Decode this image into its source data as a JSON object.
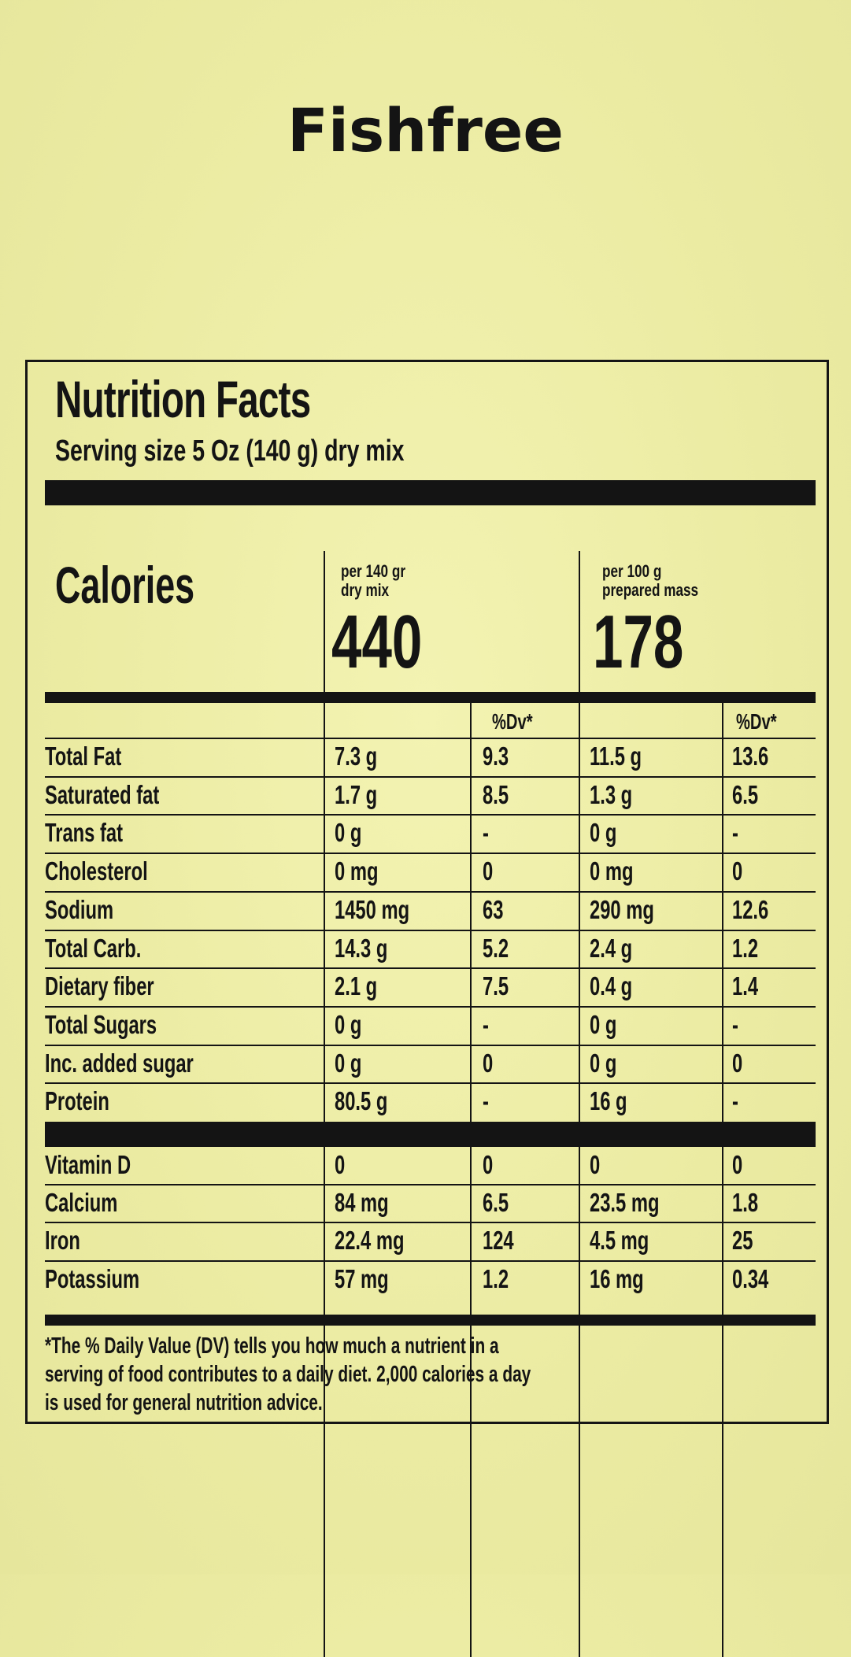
{
  "brand": "Fishfree",
  "label": {
    "title": "Nutrition Facts",
    "serving_size": "Serving size 5 Oz (140 g) dry mix",
    "calories": {
      "label": "Calories",
      "col1_caption_line1": "per 140 gr",
      "col1_caption_line2": "dry mix",
      "col1_value": "440",
      "col2_caption_line1": "per 100 g",
      "col2_caption_line2": "prepared mass",
      "col2_value": "178"
    },
    "dv_header": "%Dv*",
    "nutrients": [
      {
        "name": "Total Fat",
        "v1": "7.3 g",
        "dv1": "9.3",
        "v2": "11.5 g",
        "dv2": "13.6"
      },
      {
        "name": "Saturated fat",
        "v1": "1.7 g",
        "dv1": "8.5",
        "v2": "1.3 g",
        "dv2": "6.5"
      },
      {
        "name": "Trans fat",
        "v1": "0 g",
        "dv1": "-",
        "v2": "0 g",
        "dv2": "-"
      },
      {
        "name": "Cholesterol",
        "v1": "0 mg",
        "dv1": "0",
        "v2": "0 mg",
        "dv2": "0"
      },
      {
        "name": "Sodium",
        "v1": "1450  mg",
        "dv1": "63",
        "v2": "290 mg",
        "dv2": "12.6"
      },
      {
        "name": "Total Carb.",
        "v1": "14.3 g",
        "dv1": "5.2",
        "v2": "2.4 g",
        "dv2": "1.2"
      },
      {
        "name": "Dietary fiber",
        "v1": "2.1 g",
        "dv1": "7.5",
        "v2": "0.4 g",
        "dv2": "1.4"
      },
      {
        "name": "Total Sugars",
        "v1": "0 g",
        "dv1": "-",
        "v2": "0 g",
        "dv2": "-"
      },
      {
        "name": "Inc. added sugar",
        "v1": "0 g",
        "dv1": "0",
        "v2": "0 g",
        "dv2": "0"
      },
      {
        "name": "Protein",
        "v1": "80.5 g",
        "dv1": "-",
        "v2": "16 g",
        "dv2": "-"
      }
    ],
    "minerals": [
      {
        "name": "Vitamin D",
        "v1": "0",
        "dv1": "0",
        "v2": "0",
        "dv2": "0"
      },
      {
        "name": "Calcium",
        "v1": "84 mg",
        "dv1": "6.5",
        "v2": "23.5 mg",
        "dv2": "1.8"
      },
      {
        "name": "Iron",
        "v1": "22.4 mg",
        "dv1": "124",
        "v2": "4.5 mg",
        "dv2": "25"
      },
      {
        "name": "Potassium",
        "v1": "57 mg",
        "dv1": "1.2",
        "v2": "16 mg",
        "dv2": "0.34"
      }
    ],
    "footnote": "*The % Daily Value (DV) tells you how much a nutrient in a\nserving of food contributes to a daily diet. 2,000 calories a day\nis used for general nutrition advice."
  }
}
